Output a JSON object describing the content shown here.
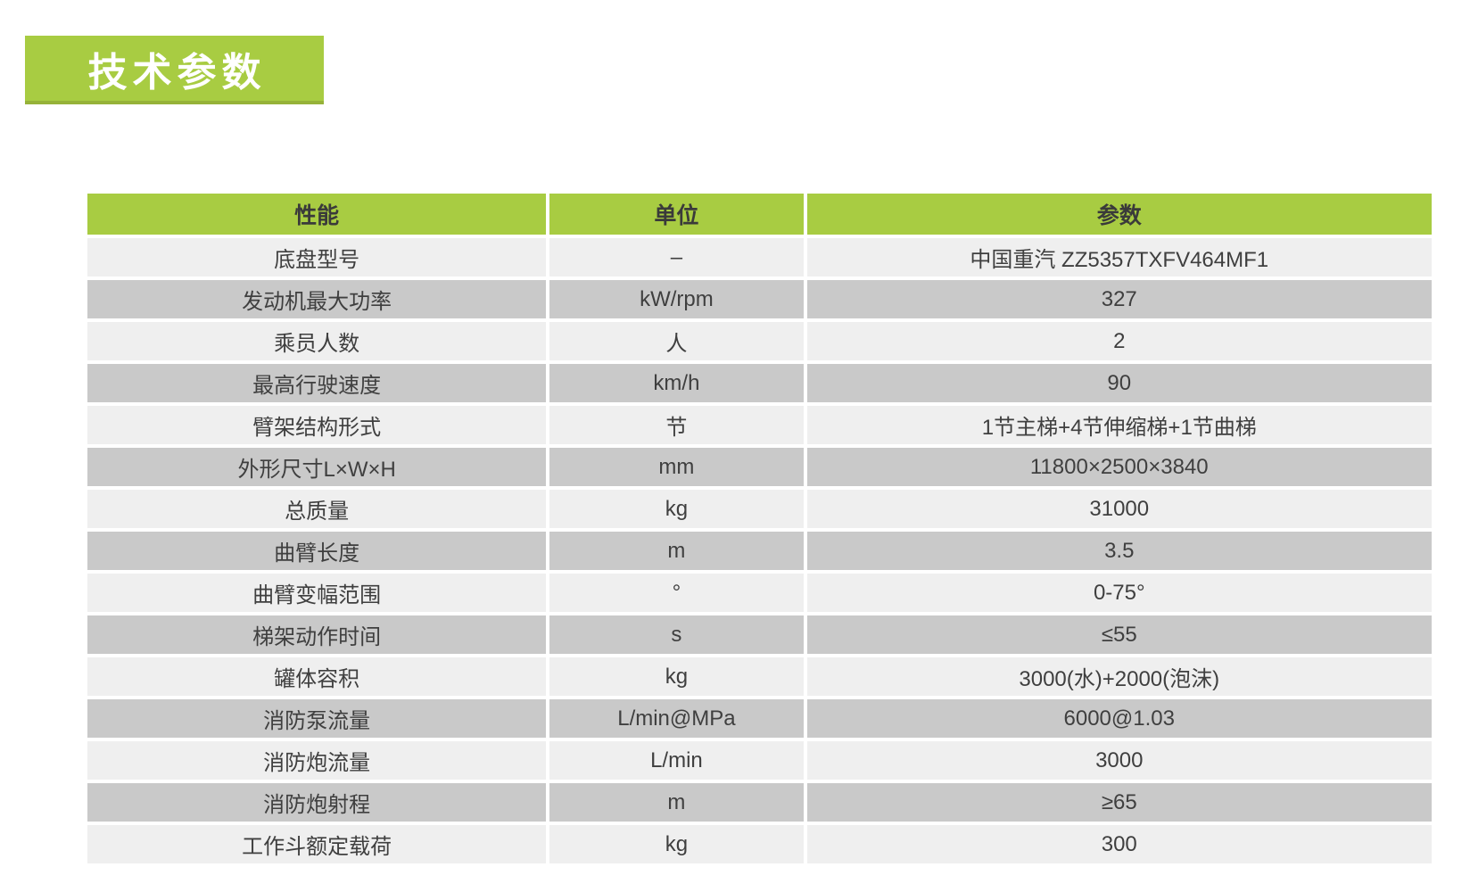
{
  "page": {
    "title": "技术参数"
  },
  "colors": {
    "accent_green": "#a8cc42",
    "accent_green_dark": "#96b239",
    "row_light": "#efefef",
    "row_dark": "#c9c9c9",
    "text": "#3f3f3f",
    "header_text": "#3a3a3a",
    "title_text": "#ffffff"
  },
  "table": {
    "headers": [
      "性能",
      "单位",
      "参数"
    ],
    "rows": [
      [
        "底盘型号",
        "–",
        "中国重汽 ZZ5357TXFV464MF1"
      ],
      [
        "发动机最大功率",
        "kW/rpm",
        "327"
      ],
      [
        "乘员人数",
        "人",
        "2"
      ],
      [
        "最高行驶速度",
        "km/h",
        "90"
      ],
      [
        "臂架结构形式",
        "节",
        "1节主梯+4节伸缩梯+1节曲梯"
      ],
      [
        "外形尺寸L×W×H",
        "mm",
        "11800×2500×3840"
      ],
      [
        "总质量",
        "kg",
        "31000"
      ],
      [
        "曲臂长度",
        "m",
        "3.5"
      ],
      [
        "曲臂变幅范围",
        "°",
        "0-75°"
      ],
      [
        "梯架动作时间",
        "s",
        "≤55"
      ],
      [
        "罐体容积",
        "kg",
        "3000(水)+2000(泡沫)"
      ],
      [
        "消防泵流量",
        "L/min@MPa",
        "6000@1.03"
      ],
      [
        "消防炮流量",
        "L/min",
        "3000"
      ],
      [
        "消防炮射程",
        "m",
        "≥65"
      ],
      [
        "工作斗额定载荷",
        "kg",
        "300"
      ]
    ]
  }
}
